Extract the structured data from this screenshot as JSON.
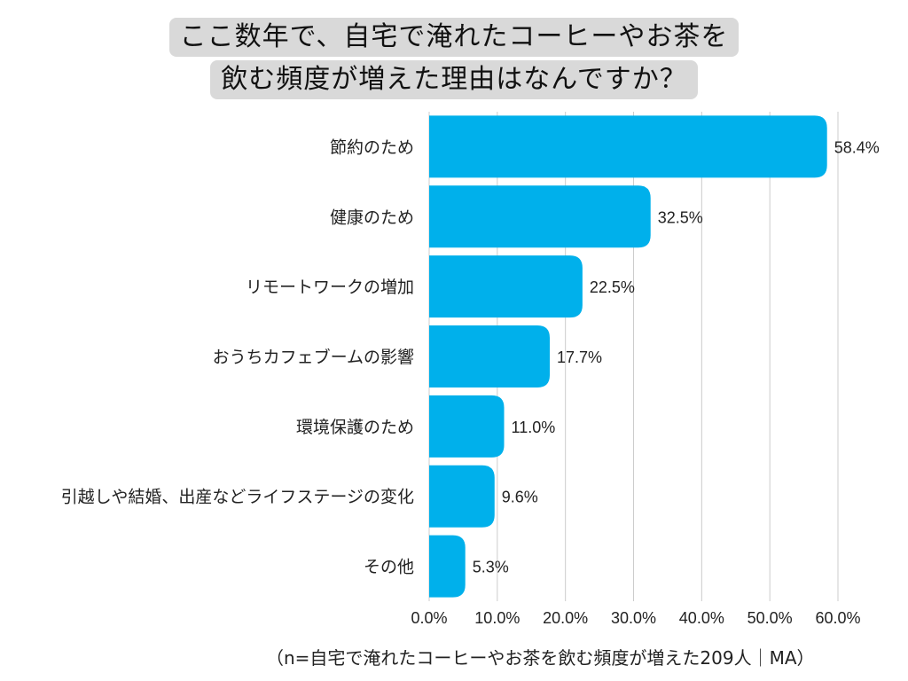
{
  "title_lines": [
    "ここ数年で、自宅で淹れたコーヒーやお茶を",
    "飲む頻度が増えた理由はなんですか？"
  ],
  "note": "（n=自宅で淹れたコーヒーやお茶を飲む頻度が増えた209人｜MA）",
  "colors": {
    "bar": "#00b0eb",
    "grid": "#cccccc",
    "title_bg": "#d9d9d9"
  },
  "chart_data": {
    "type": "bar",
    "orientation": "horizontal",
    "categories": [
      "節約のため",
      "健康のため",
      "リモートワークの増加",
      "おうちカフェブームの影響",
      "環境保護のため",
      "引越しや結婚、出産などライフステージの変化",
      "その他"
    ],
    "values": [
      58.4,
      32.5,
      22.5,
      17.7,
      11.0,
      9.6,
      5.3
    ],
    "value_labels": [
      "58.4%",
      "32.5%",
      "22.5%",
      "17.7%",
      "11.0%",
      "9.6%",
      "5.3%"
    ],
    "xlim": [
      0,
      60
    ],
    "x_ticks": [
      0,
      10,
      20,
      30,
      40,
      50,
      60
    ],
    "x_tick_labels": [
      "0.0%",
      "10.0%",
      "20.0%",
      "30.0%",
      "40.0%",
      "50.0%",
      "60.0%"
    ],
    "grid": true
  }
}
